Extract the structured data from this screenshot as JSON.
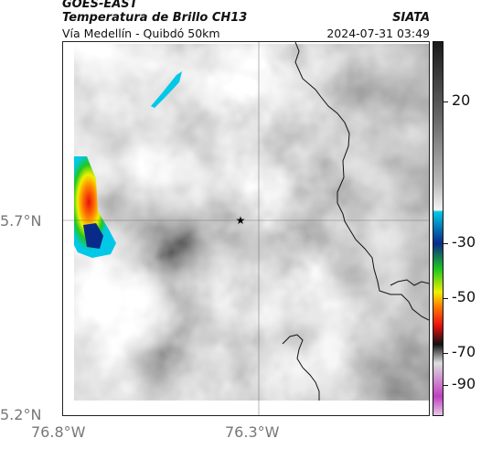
{
  "header": {
    "satellite": "GOES-EAST",
    "product": "Temperatura de Brillo CH13",
    "route": "Vía Medellín - Quibdó 50km",
    "source": "SIATA",
    "timestamp": "2024-07-31 03:49"
  },
  "axes": {
    "lat_ticks": [
      "5.7°N",
      "5.2°N"
    ],
    "lon_ticks": [
      "76.8°W",
      "76.3°W"
    ]
  },
  "colorbar": {
    "ticks": [
      "20",
      "-30",
      "-50",
      "-70",
      "-90"
    ]
  },
  "colors": {
    "cold_cyan": "#00c8e6",
    "cold_blue": "#0a2a8a",
    "cold_green": "#1fc81f",
    "cold_yellow": "#f0f000",
    "cold_orange": "#ff7a00",
    "cold_red": "#e81010",
    "cold_black": "#111111",
    "cold_magenta": "#c040c0"
  }
}
